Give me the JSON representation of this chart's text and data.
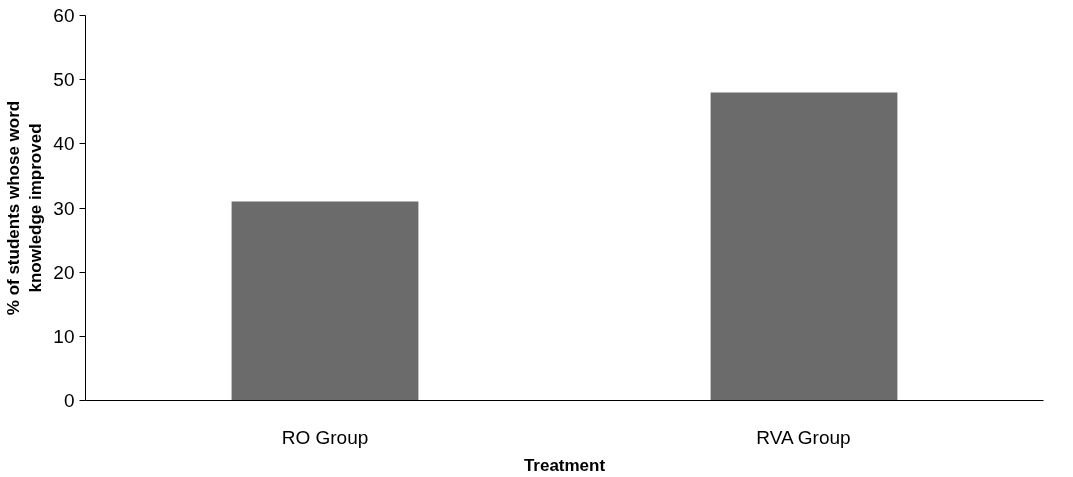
{
  "chart_data": {
    "type": "bar",
    "xlabel": "Treatment",
    "ylabel": "% of students whose word\nknowledge improved",
    "categories": [
      "RO Group",
      "RVA Group"
    ],
    "series": [
      {
        "color": "#6b6b6b",
        "values": [
          31,
          48
        ]
      }
    ],
    "ylim": [
      0,
      60
    ],
    "yticks": [
      0,
      10,
      20,
      30,
      40,
      50,
      60
    ],
    "grid": false
  }
}
